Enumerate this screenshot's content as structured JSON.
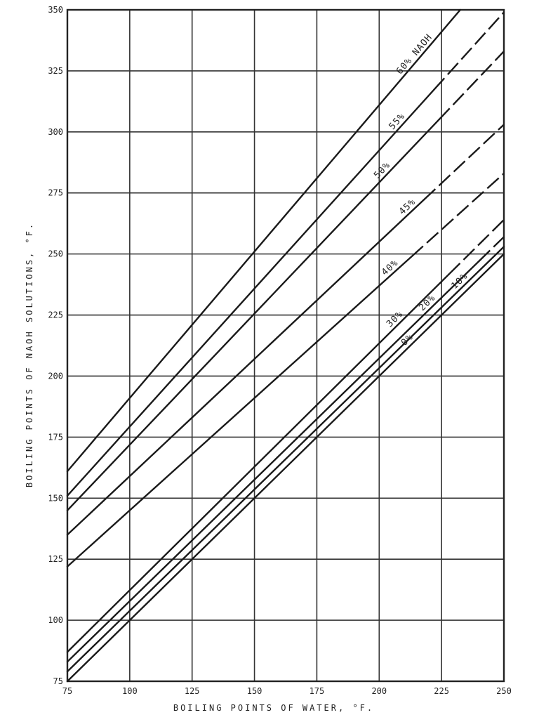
{
  "chart_data": {
    "type": "line",
    "title": "",
    "xlabel": "BOILING  POINTS OF WATER, °F.",
    "ylabel": "BOILING   POINTS OF  NAOH  SOLUTIONS, °F.",
    "xlim": [
      75,
      250
    ],
    "ylim": [
      75,
      350
    ],
    "x_ticks": [
      "75",
      "100",
      "125",
      "150",
      "175",
      "200",
      "225",
      "250"
    ],
    "y_ticks": [
      "75",
      "100",
      "125",
      "150",
      "175",
      "200",
      "225",
      "250",
      "275",
      "300",
      "325",
      "350"
    ],
    "grid": true,
    "series": [
      {
        "name": "60% NAOH",
        "x": [
          75,
          250
        ],
        "y": [
          161,
          371
        ]
      },
      {
        "name": "55%",
        "x": [
          75,
          250
        ],
        "y": [
          151,
          349
        ]
      },
      {
        "name": "50%",
        "x": [
          75,
          250
        ],
        "y": [
          145,
          333
        ]
      },
      {
        "name": "45%",
        "x": [
          75,
          250
        ],
        "y": [
          135,
          303
        ]
      },
      {
        "name": "40%",
        "x": [
          75,
          250
        ],
        "y": [
          122,
          283
        ]
      },
      {
        "name": "30%",
        "x": [
          75,
          250
        ],
        "y": [
          87,
          264
        ]
      },
      {
        "name": "20%",
        "x": [
          75,
          250
        ],
        "y": [
          83,
          257
        ]
      },
      {
        "name": "10%",
        "x": [
          75,
          250
        ],
        "y": [
          79,
          253
        ]
      },
      {
        "name": "0%",
        "x": [
          75,
          250
        ],
        "y": [
          75,
          250
        ]
      }
    ]
  }
}
